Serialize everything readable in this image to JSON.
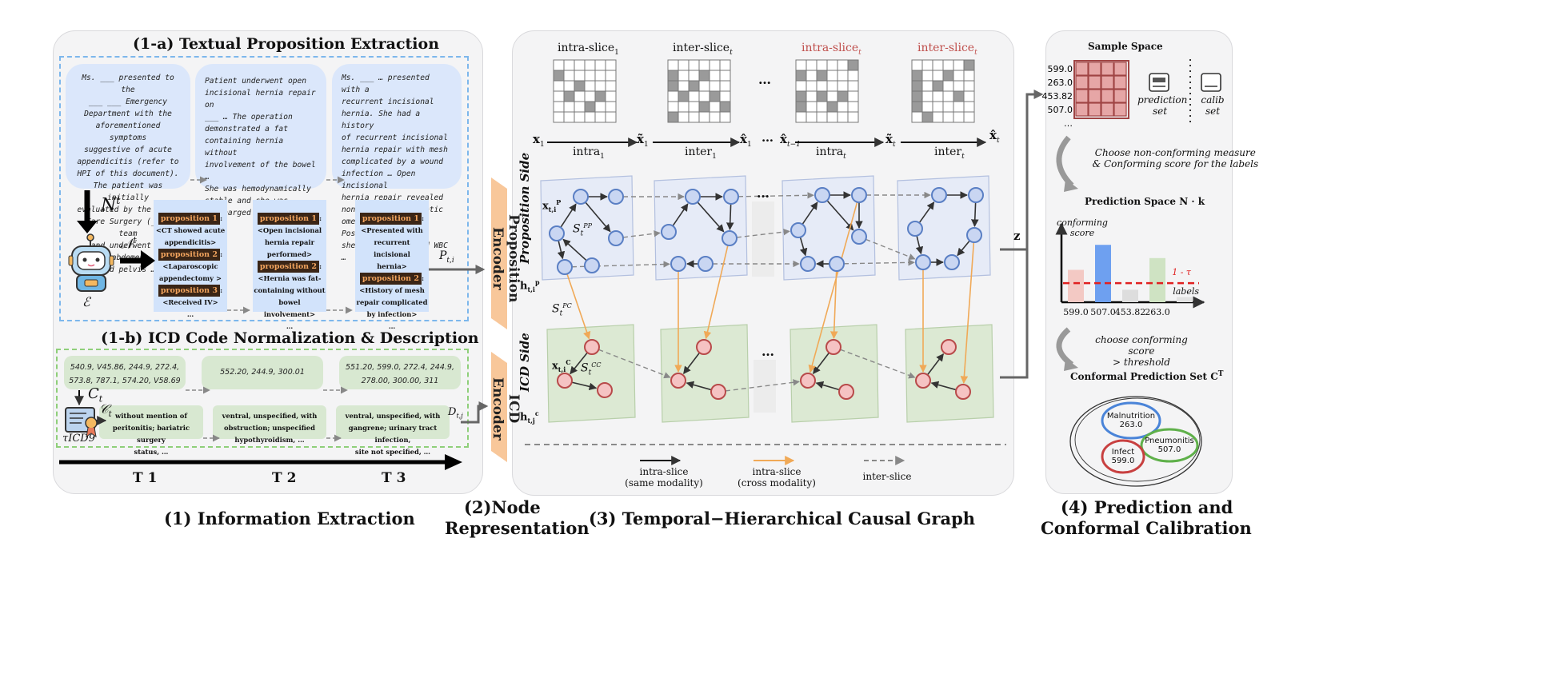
{
  "sections": {
    "s1a_title": "(1-a) Textual Proposition Extraction",
    "s1b_title": "(1-b) ICD Code Normalization & Description",
    "s1_caption": "(1) Information Extraction",
    "s2_caption_l1": "(2)Node",
    "s2_caption_l2": "Representation",
    "s3_caption": "(3) Temporal−Hierarchical Causal Graph",
    "s4_caption_l1": "(4) Prediction and",
    "s4_caption_l2": "Conformal Calibration"
  },
  "notes": [
    "Ms. ___ presented to the\n___ ___ Emergency\nDepartment with the\naforementioned symptoms\nsuggestive of acute\nappendicitis (refer to\nHPI of this document).\nThe patient was initially\nevaluated by the Acute\nCare Surgery (___) team\nand underwent CT abdomen\nand pelvis …",
    "Patient underwent open\nincisional hernia repair on\n___ … The operation\ndemonstrated a fat\ncontaining hernia without\ninvolvement of the bowel …\nShe was hemodynamically\nstable and she was\ndischarged home.",
    "Ms. ___ … presented with a\nrecurrent incisional\nhernia. She had a history\nof recurrent incisional\nhernia repair with mesh\ncomplicated by a wound\ninfection … Open incisional\nhernia repair revealed\nnonviable and necrotic\nomentum … Postoperatively\nshe had an elevated WBC …"
  ],
  "propositions": [
    {
      "p1_label": "proposition 1",
      "p1_text": "<CT showed acute\nappendicitis>",
      "p2_label": "proposition 2",
      "p2_text": "<Laparoscopic\nappendectomy >",
      "p3_label": "proposition 3",
      "p3_text": "<Received IV>",
      "more": "…"
    },
    {
      "p1_label": "proposition 1",
      "p1_text": "<Open incisional\nhernia repair\nperformed>",
      "p2_label": "proposition 2",
      "p2_text": "<Hernia was fat-\ncontaining without\nbowel involvement>",
      "more": "…"
    },
    {
      "p1_label": "proposition 1",
      "p1_text": "<Presented with\nrecurrent incisional\nhernia>",
      "p2_label": "proposition 2",
      "p2_text": "<History of mesh\nrepair complicated\nby infection>",
      "more": "…"
    }
  ],
  "icd_codes": [
    "540.9, V45.86, 244.9, 272.4,\n573.8, 787.1, 574.20, V58.69",
    "552.20, 244.9, 300.01",
    "551.20, 599.0, 272.4, 244.9,\n278.00, 300.00, 311"
  ],
  "icd_descriptions": [
    "without mention of\nperitonitis; bariatric surgery\nstatus, …",
    "ventral, unspecified, with\nobstruction; unspecified\nhypothyroidism, …",
    "ventral, unspecified, with\ngangrene; urinary tract infection,\nsite not specified, …"
  ],
  "labels": {
    "N_t": "N",
    "N_t_sup": "t",
    "calN_t": "𝒩",
    "calE": "ℰ",
    "C_t": "C",
    "C_t_sub": "t",
    "calC_t": "𝒞",
    "tau_icd9": "τICD9",
    "P_ti": "P",
    "P_ti_sub": "t,i",
    "D_tj": "D",
    "D_tj_sub": "t,j",
    "time_steps": [
      "T 1",
      "T 2",
      "T 3"
    ]
  },
  "encoders": {
    "proposition": "Proposition Encoder",
    "icd": "ICD Encoder"
  },
  "graph": {
    "slice_titles": [
      {
        "base": "intra-slice",
        "sub": "1",
        "color": "#111111"
      },
      {
        "base": "inter-slice",
        "sub": "t",
        "color": "#111111"
      },
      {
        "base": "intra-slice",
        "sub": "t",
        "color": "#c0504d"
      },
      {
        "base": "inter-slice",
        "sub": "t",
        "color": "#c0504d"
      }
    ],
    "ellipsis": "…",
    "chain": [
      {
        "sym": "x",
        "sub": "1"
      },
      {
        "op": "intra",
        "sub": "1"
      },
      {
        "sym": "x̃",
        "sub": "1"
      },
      {
        "op": "inter",
        "sub": "1"
      },
      {
        "sym": "x̂",
        "sub": "1"
      },
      {
        "sym": "x̂",
        "sub": "t−1"
      },
      {
        "op": "intra",
        "sub": "t"
      },
      {
        "sym": "x̃",
        "sub": "t"
      },
      {
        "op": "inter",
        "sub": "t"
      },
      {
        "sym": "x̂",
        "sub": "t"
      }
    ],
    "proposition_side": "Proposition Side",
    "icd_side": "ICD Side",
    "S_PP": "S",
    "S_PP_sup": "PP",
    "S_PP_sub": "t",
    "S_PC": "S",
    "S_PC_sup": "PC",
    "S_PC_sub": "t",
    "S_CC": "S",
    "S_CC_sup": "CC",
    "S_CC_sub": "t",
    "x_P": "x",
    "x_P_sup": "P",
    "x_P_sub": "t,i",
    "x_C": "x",
    "x_C_sup": "C",
    "x_C_sub": "t,i",
    "h_p": "h",
    "h_p_sup": "p",
    "h_p_sub": "t,i",
    "h_c": "h",
    "h_c_sup": "c",
    "h_c_sub": "t,j",
    "z": "z",
    "legend": [
      {
        "l1": "intra-slice",
        "l2": "(same modality)",
        "style": "solid-black"
      },
      {
        "l1": "intra-slice",
        "l2": "(cross modality)",
        "style": "solid-orange"
      },
      {
        "l1": "inter-slice",
        "l2": "",
        "style": "dashed-gray"
      }
    ]
  },
  "panel4": {
    "sample_space": "Sample Space",
    "row_labels": [
      "599.0",
      "263.0",
      "453.82",
      "507.0",
      "…"
    ],
    "prediction_set": "prediction\nset",
    "calib_set": "calib\nset",
    "choose_text": "Choose non-conforming measure\n& Conforming score for the labels",
    "prediction_space": "Prediction Space N · k",
    "conforming_score_label": "conforming\nscore",
    "threshold_label": "1 - τ",
    "labels_axis": "labels",
    "choose_threshold_text": "choose conforming score\n> threshold",
    "conformal_set_title": "Conformal Prediction Set C",
    "conformal_set_sup": "T",
    "circles": [
      {
        "name": "Malnutrition",
        "code": "263.0"
      },
      {
        "name": "Pneumonitis",
        "code": "507.0"
      },
      {
        "name": "Infect",
        "code": "599.0"
      }
    ]
  },
  "chart_data": {
    "type": "bar",
    "categories": [
      "599.0",
      "507.0",
      "453.82",
      "263.0",
      ""
    ],
    "values": [
      0.44,
      0.78,
      0.17,
      0.6,
      0.07
    ],
    "colors": [
      "#f3c9c4",
      "#6ea0f0",
      "#dddddd",
      "#cfe3c3",
      "#e2e2e2"
    ],
    "ylabel": "conforming\nscore",
    "xlabel": "labels",
    "threshold": 0.26,
    "threshold_label": "1 - τ",
    "ylim": [
      0,
      1
    ]
  }
}
